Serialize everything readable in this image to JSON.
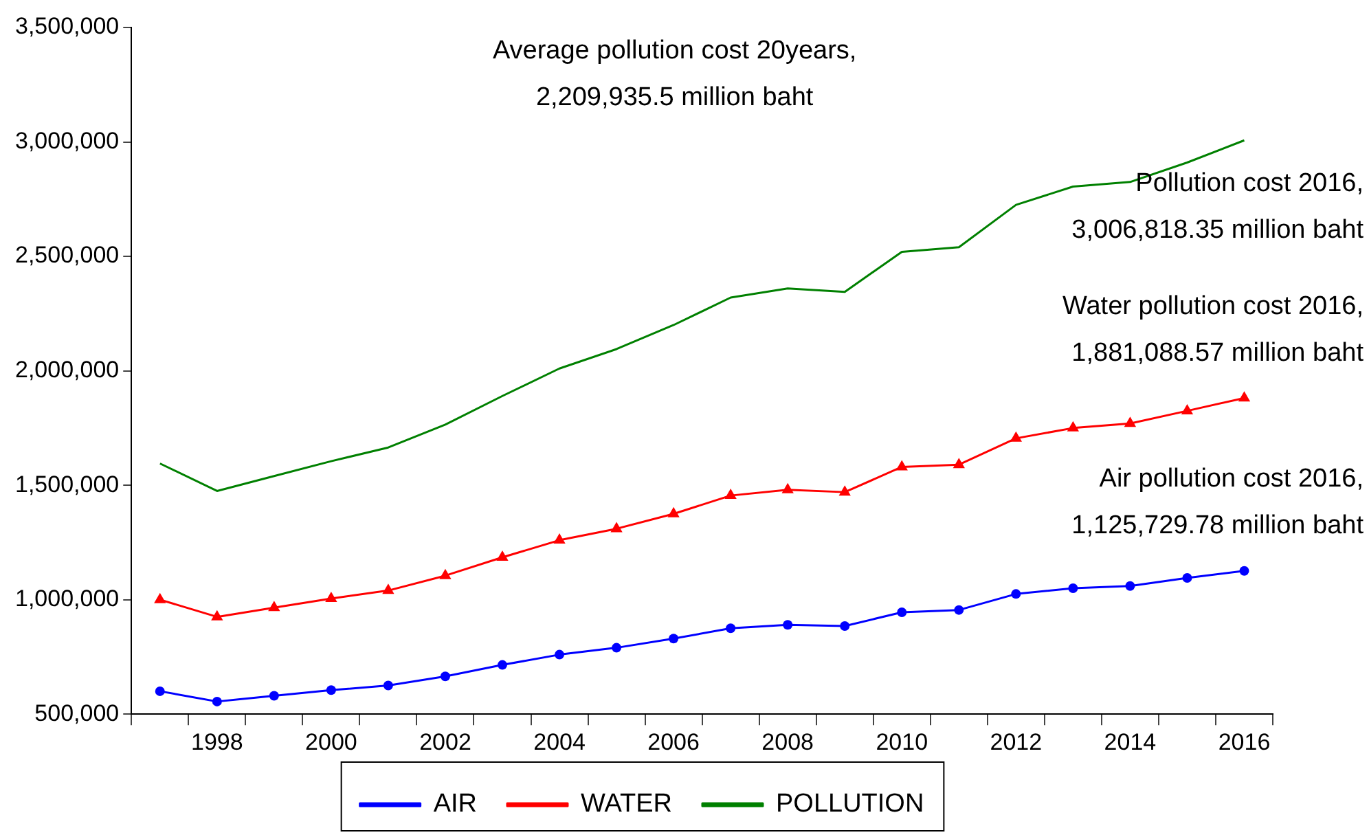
{
  "chart_data": {
    "type": "line",
    "categories": [
      null,
      "1998",
      null,
      "2000",
      null,
      "2002",
      null,
      "2004",
      null,
      "2006",
      null,
      "2008",
      null,
      "2010",
      null,
      "2012",
      null,
      "2014",
      null,
      "2016"
    ],
    "series": [
      {
        "name": "AIR",
        "color": "#0000ff",
        "marker": "circle",
        "values": [
          600000,
          555000,
          580000,
          605000,
          625000,
          665000,
          715000,
          760000,
          790000,
          830000,
          875000,
          890000,
          885000,
          945000,
          955000,
          1025000,
          1050000,
          1060000,
          1095000,
          1125729.78
        ]
      },
      {
        "name": "WATER",
        "color": "#ff0000",
        "marker": "triangle",
        "values": [
          1000000,
          925000,
          965000,
          1005000,
          1040000,
          1105000,
          1185000,
          1260000,
          1310000,
          1375000,
          1455000,
          1480000,
          1470000,
          1580000,
          1590000,
          1705000,
          1750000,
          1770000,
          1825000,
          1881088.57
        ]
      },
      {
        "name": "POLLUTION",
        "color": "#008000",
        "marker": "none",
        "values": [
          1595000,
          1475000,
          1540000,
          1605000,
          1665000,
          1765000,
          1890000,
          2010000,
          2095000,
          2200000,
          2320000,
          2360000,
          2345000,
          2520000,
          2540000,
          2725000,
          2805000,
          2825000,
          2910000,
          3006818.35
        ]
      }
    ],
    "ylim": [
      500000,
      3500000
    ],
    "yticks": [
      {
        "value": 500000,
        "label": "500,000"
      },
      {
        "value": 1000000,
        "label": "1,000,000"
      },
      {
        "value": 1500000,
        "label": "1,500,000"
      },
      {
        "value": 2000000,
        "label": "2,000,000"
      },
      {
        "value": 2500000,
        "label": "2,500,000"
      },
      {
        "value": 3000000,
        "label": "3,000,000"
      },
      {
        "value": 3500000,
        "label": "3,500,000"
      }
    ],
    "grid": false,
    "legend": "bottom",
    "annotations": [
      "Average pollution cost 20years,\n2,209,935.5 million baht",
      {
        "text": "Pollution cost 2016,\n3,006,818.35 million baht",
        "x": "2016",
        "y": 3006818.35
      },
      {
        "text": "Water pollution cost 2016,\n1,881,088.57 million baht",
        "x": "2016",
        "y": 1881088.57
      },
      {
        "text": "Air pollution cost 2016,\n1,125,729.78 million baht",
        "x": "2016",
        "y": 1125729.78
      }
    ]
  }
}
